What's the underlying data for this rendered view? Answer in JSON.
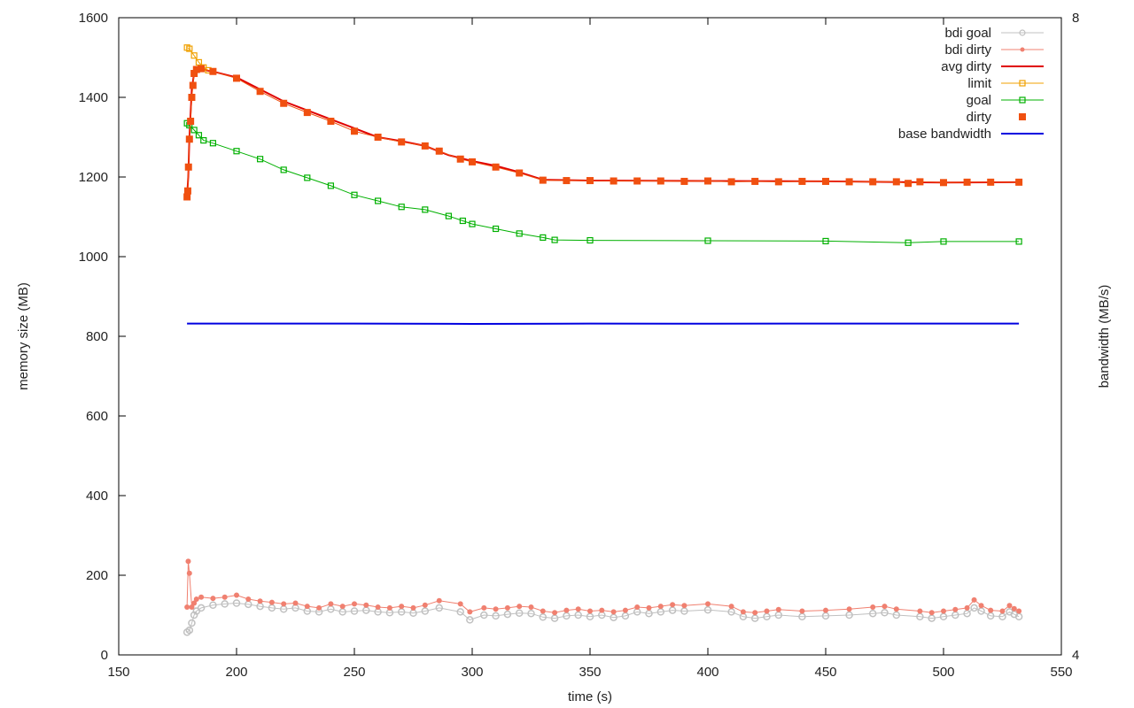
{
  "chart_data": {
    "type": "line",
    "xlabel": "time (s)",
    "ylabel": "memory size (MB)",
    "y2label": "bandwidth (MB/s)",
    "xlim": [
      150,
      550
    ],
    "ylim": [
      0,
      1600
    ],
    "y2lim": [
      4,
      8
    ],
    "xticks": [
      150,
      200,
      250,
      300,
      350,
      400,
      450,
      500,
      550
    ],
    "yticks": [
      0,
      200,
      400,
      600,
      800,
      1000,
      1200,
      1400,
      1600
    ],
    "y2ticks": [
      4,
      8
    ],
    "grid": false,
    "legend_position": "top-right",
    "series": [
      {
        "name": "bdi goal",
        "color": "#c0c0c0",
        "marker": "circle-open",
        "values": [
          [
            179,
            57
          ],
          [
            180,
            62
          ],
          [
            181,
            80
          ],
          [
            182,
            100
          ],
          [
            183,
            110
          ],
          [
            185,
            118
          ],
          [
            190,
            125
          ],
          [
            195,
            128
          ],
          [
            200,
            130
          ],
          [
            205,
            127
          ],
          [
            210,
            122
          ],
          [
            215,
            118
          ],
          [
            220,
            115
          ],
          [
            225,
            118
          ],
          [
            230,
            110
          ],
          [
            235,
            108
          ],
          [
            240,
            115
          ],
          [
            245,
            108
          ],
          [
            250,
            110
          ],
          [
            255,
            112
          ],
          [
            260,
            108
          ],
          [
            265,
            106
          ],
          [
            270,
            108
          ],
          [
            275,
            105
          ],
          [
            280,
            110
          ],
          [
            286,
            118
          ],
          [
            295,
            108
          ],
          [
            299,
            88
          ],
          [
            305,
            100
          ],
          [
            310,
            98
          ],
          [
            315,
            102
          ],
          [
            320,
            105
          ],
          [
            325,
            104
          ],
          [
            330,
            95
          ],
          [
            335,
            92
          ],
          [
            340,
            98
          ],
          [
            345,
            100
          ],
          [
            350,
            96
          ],
          [
            355,
            100
          ],
          [
            360,
            94
          ],
          [
            365,
            98
          ],
          [
            370,
            108
          ],
          [
            375,
            104
          ],
          [
            380,
            108
          ],
          [
            385,
            112
          ],
          [
            390,
            110
          ],
          [
            400,
            113
          ],
          [
            410,
            108
          ],
          [
            415,
            96
          ],
          [
            420,
            92
          ],
          [
            425,
            96
          ],
          [
            430,
            100
          ],
          [
            440,
            96
          ],
          [
            450,
            98
          ],
          [
            460,
            100
          ],
          [
            470,
            104
          ],
          [
            475,
            106
          ],
          [
            480,
            100
          ],
          [
            490,
            96
          ],
          [
            495,
            92
          ],
          [
            500,
            96
          ],
          [
            505,
            100
          ],
          [
            510,
            104
          ],
          [
            513,
            118
          ],
          [
            516,
            110
          ],
          [
            520,
            98
          ],
          [
            525,
            96
          ],
          [
            528,
            108
          ],
          [
            530,
            102
          ],
          [
            532,
            96
          ]
        ]
      },
      {
        "name": "bdi dirty",
        "color": "#f08070",
        "marker": "dot",
        "values": [
          [
            179,
            120
          ],
          [
            179.5,
            235
          ],
          [
            180,
            205
          ],
          [
            181,
            120
          ],
          [
            182,
            130
          ],
          [
            183,
            140
          ],
          [
            185,
            145
          ],
          [
            190,
            142
          ],
          [
            195,
            145
          ],
          [
            200,
            150
          ],
          [
            205,
            140
          ],
          [
            210,
            135
          ],
          [
            215,
            132
          ],
          [
            220,
            128
          ],
          [
            225,
            130
          ],
          [
            230,
            122
          ],
          [
            235,
            118
          ],
          [
            240,
            128
          ],
          [
            245,
            122
          ],
          [
            250,
            128
          ],
          [
            255,
            125
          ],
          [
            260,
            120
          ],
          [
            265,
            118
          ],
          [
            270,
            122
          ],
          [
            275,
            118
          ],
          [
            280,
            125
          ],
          [
            286,
            136
          ],
          [
            295,
            128
          ],
          [
            299,
            108
          ],
          [
            305,
            118
          ],
          [
            310,
            115
          ],
          [
            315,
            118
          ],
          [
            320,
            122
          ],
          [
            325,
            120
          ],
          [
            330,
            110
          ],
          [
            335,
            106
          ],
          [
            340,
            112
          ],
          [
            345,
            115
          ],
          [
            350,
            110
          ],
          [
            355,
            112
          ],
          [
            360,
            108
          ],
          [
            365,
            112
          ],
          [
            370,
            120
          ],
          [
            375,
            118
          ],
          [
            380,
            122
          ],
          [
            385,
            126
          ],
          [
            390,
            124
          ],
          [
            400,
            128
          ],
          [
            410,
            122
          ],
          [
            415,
            108
          ],
          [
            420,
            106
          ],
          [
            425,
            110
          ],
          [
            430,
            114
          ],
          [
            440,
            110
          ],
          [
            450,
            112
          ],
          [
            460,
            115
          ],
          [
            470,
            120
          ],
          [
            475,
            122
          ],
          [
            480,
            115
          ],
          [
            490,
            110
          ],
          [
            495,
            106
          ],
          [
            500,
            110
          ],
          [
            505,
            114
          ],
          [
            510,
            118
          ],
          [
            513,
            138
          ],
          [
            516,
            124
          ],
          [
            520,
            112
          ],
          [
            525,
            110
          ],
          [
            528,
            124
          ],
          [
            530,
            116
          ],
          [
            532,
            110
          ]
        ]
      },
      {
        "name": "avg dirty",
        "color": "#e00000",
        "marker": "line",
        "values": [
          [
            179,
            1150
          ],
          [
            179.5,
            1200
          ],
          [
            180,
            1300
          ],
          [
            181,
            1420
          ],
          [
            182,
            1460
          ],
          [
            185,
            1470
          ],
          [
            190,
            1465
          ],
          [
            200,
            1450
          ],
          [
            220,
            1390
          ],
          [
            240,
            1345
          ],
          [
            260,
            1300
          ],
          [
            270,
            1290
          ],
          [
            280,
            1278
          ],
          [
            290,
            1255
          ],
          [
            300,
            1240
          ],
          [
            310,
            1228
          ],
          [
            320,
            1212
          ],
          [
            330,
            1193
          ],
          [
            350,
            1191
          ],
          [
            400,
            1190
          ],
          [
            450,
            1189
          ],
          [
            500,
            1186
          ],
          [
            532,
            1187
          ]
        ]
      },
      {
        "name": "limit",
        "color": "#f0a000",
        "marker": "square-open",
        "values": [
          [
            179,
            1525
          ],
          [
            180,
            1522
          ],
          [
            182,
            1505
          ],
          [
            184,
            1488
          ],
          [
            186,
            1475
          ],
          [
            188,
            1468
          ]
        ]
      },
      {
        "name": "goal",
        "color": "#00b000",
        "marker": "square-open",
        "values": [
          [
            179,
            1335
          ],
          [
            180,
            1330
          ],
          [
            182,
            1318
          ],
          [
            184,
            1305
          ],
          [
            186,
            1292
          ],
          [
            190,
            1285
          ],
          [
            200,
            1265
          ],
          [
            210,
            1245
          ],
          [
            220,
            1218
          ],
          [
            230,
            1198
          ],
          [
            240,
            1178
          ],
          [
            250,
            1155
          ],
          [
            260,
            1140
          ],
          [
            270,
            1125
          ],
          [
            280,
            1118
          ],
          [
            290,
            1102
          ],
          [
            296,
            1090
          ],
          [
            300,
            1082
          ],
          [
            310,
            1070
          ],
          [
            320,
            1058
          ],
          [
            330,
            1048
          ],
          [
            335,
            1042
          ],
          [
            350,
            1041
          ],
          [
            400,
            1040
          ],
          [
            450,
            1039
          ],
          [
            485,
            1035
          ],
          [
            500,
            1038
          ],
          [
            532,
            1038
          ]
        ]
      },
      {
        "name": "dirty",
        "color": "#f05010",
        "marker": "square-filled",
        "values": [
          [
            179,
            1150
          ],
          [
            179.3,
            1165
          ],
          [
            179.6,
            1225
          ],
          [
            180,
            1295
          ],
          [
            180.5,
            1340
          ],
          [
            181,
            1400
          ],
          [
            181.5,
            1430
          ],
          [
            182,
            1460
          ],
          [
            183,
            1470
          ],
          [
            185,
            1472
          ],
          [
            190,
            1465
          ],
          [
            200,
            1448
          ],
          [
            210,
            1415
          ],
          [
            220,
            1385
          ],
          [
            230,
            1362
          ],
          [
            240,
            1340
          ],
          [
            250,
            1315
          ],
          [
            260,
            1300
          ],
          [
            270,
            1288
          ],
          [
            280,
            1278
          ],
          [
            286,
            1265
          ],
          [
            295,
            1245
          ],
          [
            300,
            1238
          ],
          [
            310,
            1225
          ],
          [
            320,
            1210
          ],
          [
            330,
            1192
          ],
          [
            340,
            1191
          ],
          [
            350,
            1191
          ],
          [
            360,
            1190
          ],
          [
            370,
            1190
          ],
          [
            380,
            1190
          ],
          [
            390,
            1189
          ],
          [
            400,
            1190
          ],
          [
            410,
            1188
          ],
          [
            420,
            1189
          ],
          [
            430,
            1188
          ],
          [
            440,
            1189
          ],
          [
            450,
            1189
          ],
          [
            460,
            1188
          ],
          [
            470,
            1188
          ],
          [
            480,
            1188
          ],
          [
            485,
            1184
          ],
          [
            490,
            1188
          ],
          [
            500,
            1186
          ],
          [
            510,
            1187
          ],
          [
            520,
            1187
          ],
          [
            532,
            1187
          ]
        ]
      },
      {
        "name": "base bandwidth",
        "color": "#0000e0",
        "marker": "line",
        "axis": "y2",
        "values": [
          [
            179,
            6.08
          ],
          [
            250,
            6.08
          ],
          [
            300,
            6.078
          ],
          [
            350,
            6.08
          ],
          [
            400,
            6.079
          ],
          [
            450,
            6.08
          ],
          [
            500,
            6.08
          ],
          [
            532,
            6.08
          ]
        ]
      }
    ]
  }
}
